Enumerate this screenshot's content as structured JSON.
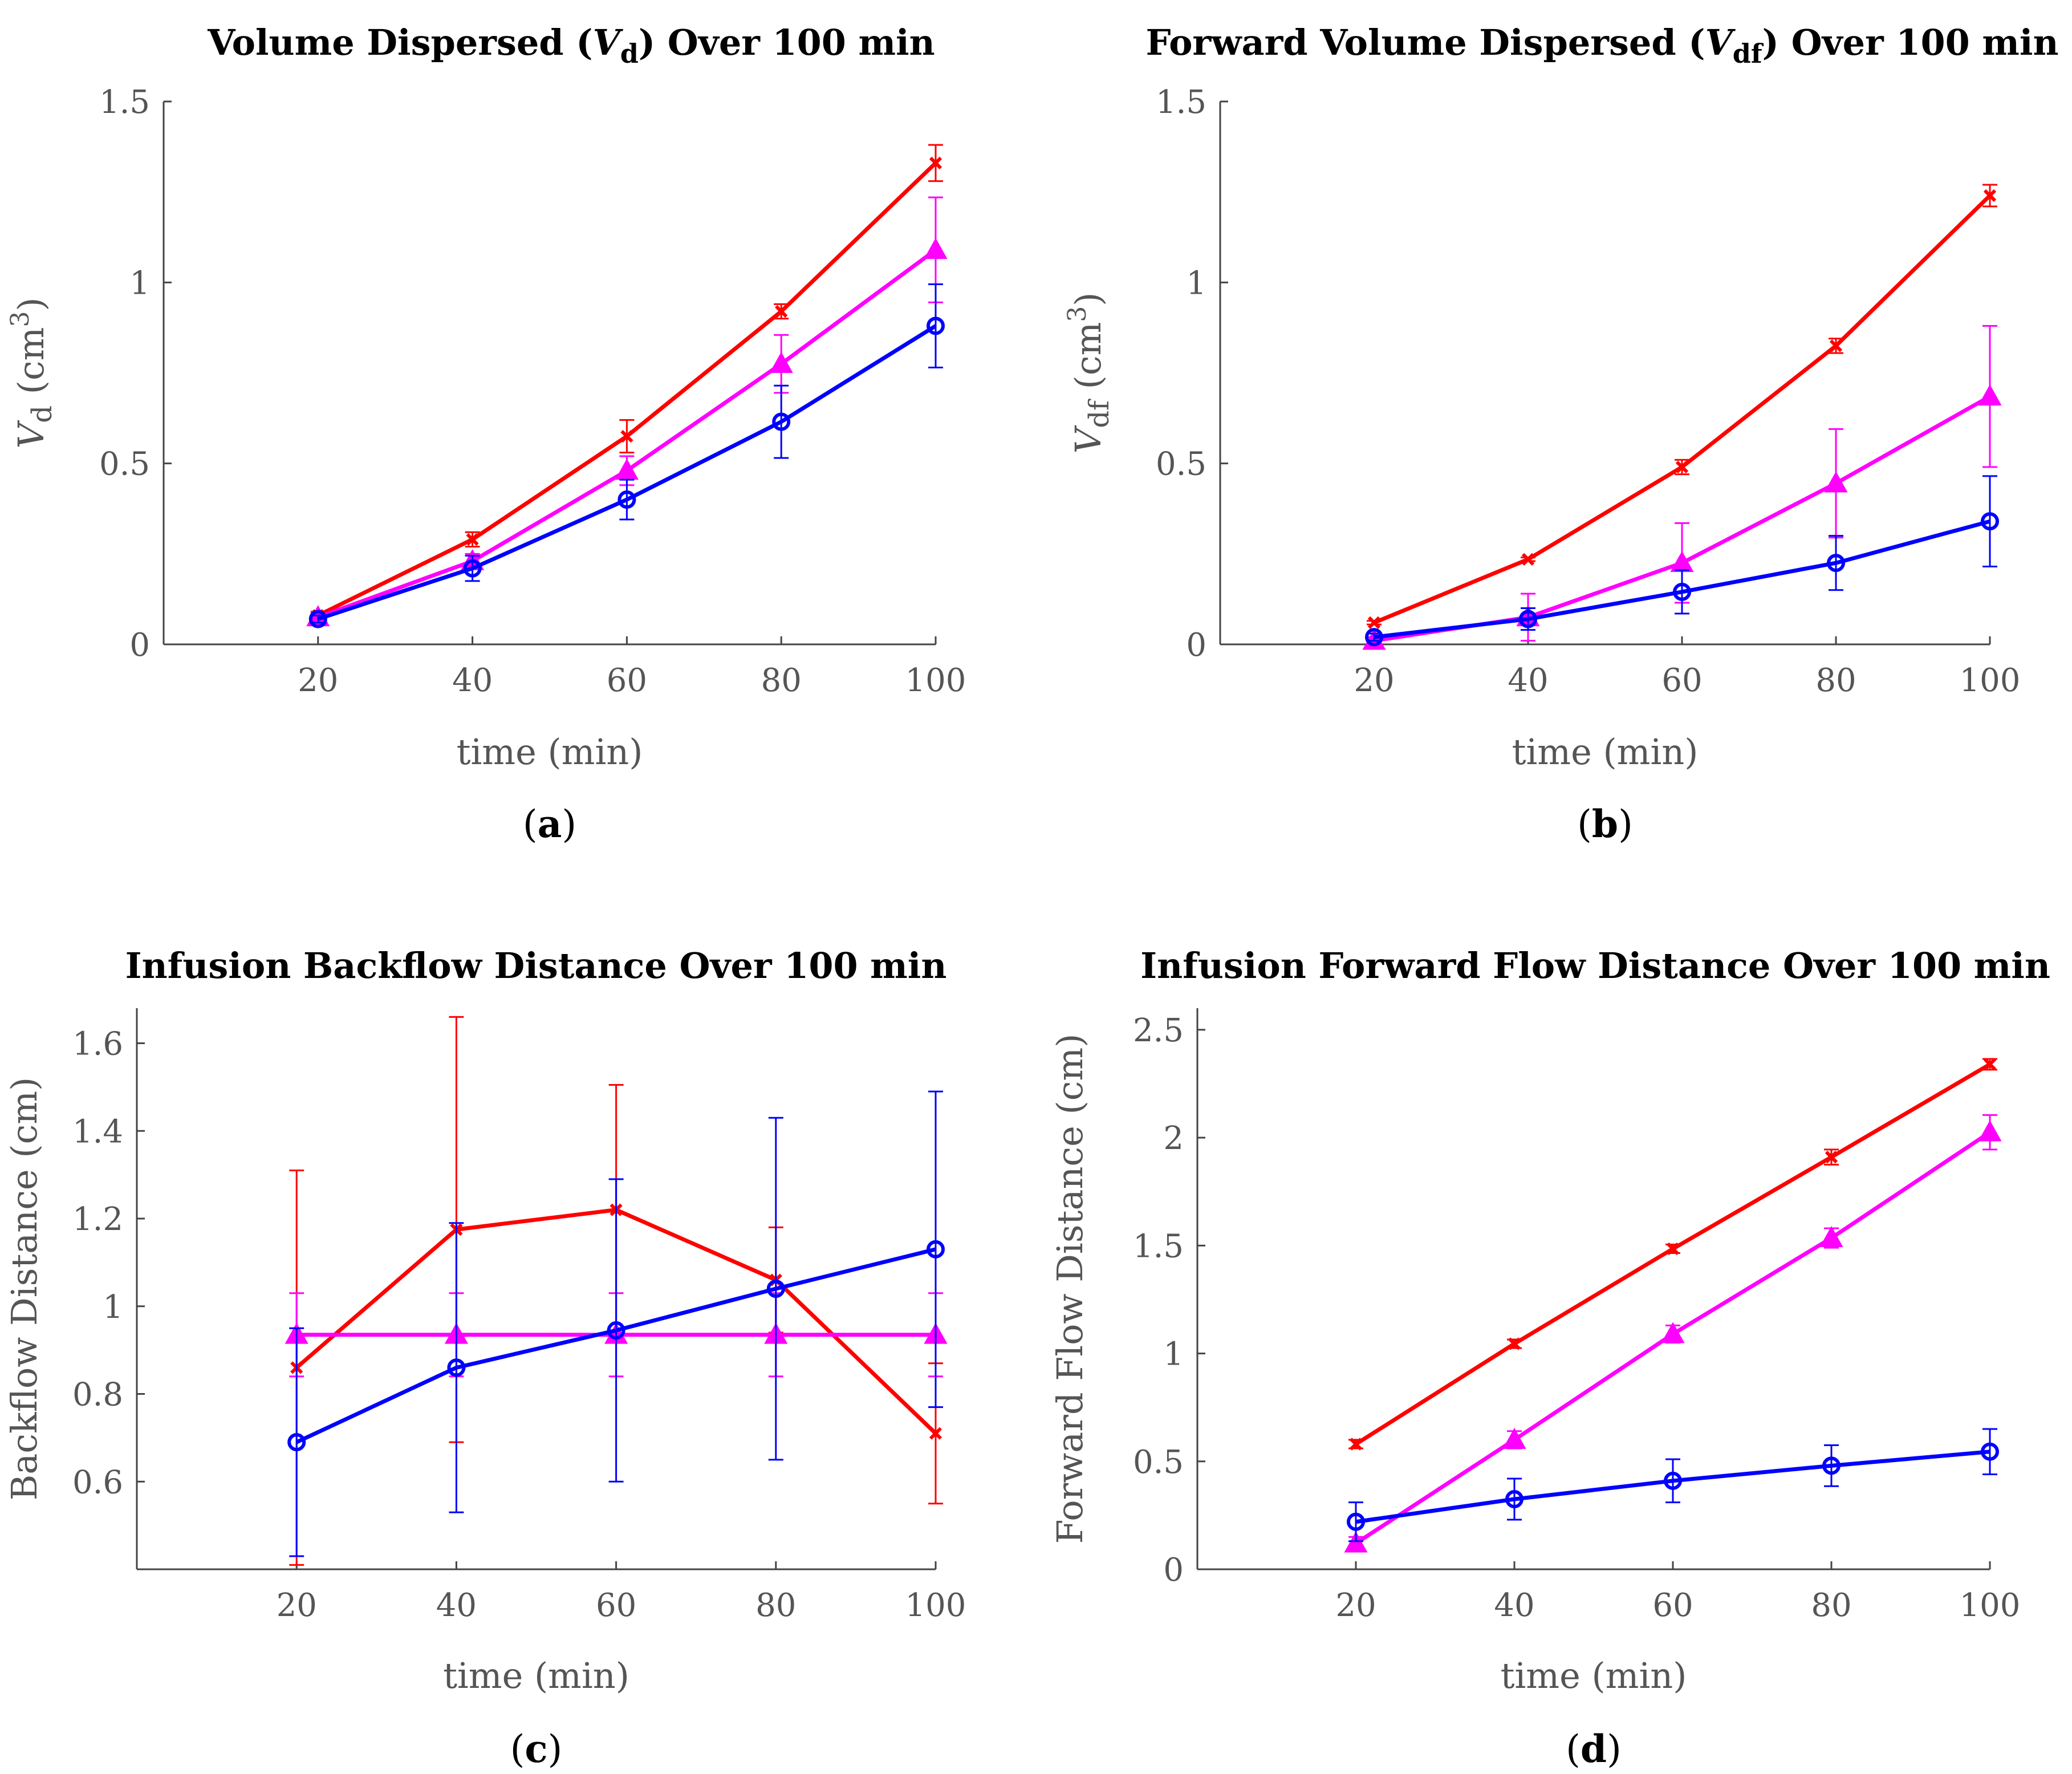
{
  "colors": {
    "red": "#ff0000",
    "magenta": "#ff00ff",
    "blue": "#0000ff",
    "axis": "#444444",
    "text": "#555555"
  },
  "chart_data": [
    {
      "id": "a",
      "type": "line",
      "title_parts": [
        "Volume Dispersed (",
        "V",
        "d",
        ") Over 100 min"
      ],
      "xlabel": "time (min)",
      "ylabel_parts": [
        "V",
        "d",
        " (cm",
        "3",
        ")"
      ],
      "panel_label": [
        "(",
        "a",
        ")"
      ],
      "x": [
        20,
        40,
        60,
        80,
        100
      ],
      "xlim": [
        0,
        100
      ],
      "ylim": [
        0,
        1.5
      ],
      "xticks": [
        20,
        40,
        60,
        80,
        100
      ],
      "yticks": [
        0,
        0.5,
        1,
        1.5
      ],
      "ytick_labels": [
        "0",
        "0.5",
        "1",
        "1.5"
      ],
      "series": [
        {
          "name": "red",
          "color": "red",
          "marker": "x",
          "values": [
            0.08,
            0.29,
            0.575,
            0.92,
            1.33
          ],
          "err": [
            0.01,
            0.02,
            0.045,
            0.02,
            0.05
          ]
        },
        {
          "name": "magenta",
          "color": "magenta",
          "marker": "triangle",
          "values": [
            0.075,
            0.23,
            0.48,
            0.775,
            1.09
          ],
          "err": [
            0.01,
            0.02,
            0.04,
            0.08,
            0.145
          ]
        },
        {
          "name": "blue",
          "color": "blue",
          "marker": "circle",
          "values": [
            0.07,
            0.21,
            0.4,
            0.615,
            0.88
          ],
          "err": [
            0.01,
            0.035,
            0.055,
            0.1,
            0.115
          ]
        }
      ]
    },
    {
      "id": "b",
      "type": "line",
      "title_parts": [
        "Forward Volume Dispersed (",
        "V",
        "df",
        ") Over 100 min"
      ],
      "xlabel": "time (min)",
      "ylabel_parts": [
        "V",
        "df",
        " (cm",
        "3",
        ")"
      ],
      "panel_label": [
        "(",
        "b",
        ")"
      ],
      "x": [
        20,
        40,
        60,
        80,
        100
      ],
      "xlim": [
        0,
        100
      ],
      "ylim": [
        0,
        1.5
      ],
      "xticks": [
        20,
        40,
        60,
        80,
        100
      ],
      "yticks": [
        0,
        0.5,
        1,
        1.5
      ],
      "ytick_labels": [
        "0",
        "0.5",
        "1",
        "1.5"
      ],
      "series": [
        {
          "name": "red",
          "color": "red",
          "marker": "x",
          "values": [
            0.06,
            0.235,
            0.49,
            0.825,
            1.24
          ],
          "err": [
            0.005,
            0.005,
            0.02,
            0.02,
            0.03
          ]
        },
        {
          "name": "magenta",
          "color": "magenta",
          "marker": "triangle",
          "values": [
            0.01,
            0.075,
            0.225,
            0.445,
            0.685
          ],
          "err": [
            0.01,
            0.065,
            0.11,
            0.15,
            0.195
          ]
        },
        {
          "name": "blue",
          "color": "blue",
          "marker": "circle",
          "values": [
            0.02,
            0.07,
            0.145,
            0.225,
            0.34
          ],
          "err": [
            0.01,
            0.03,
            0.06,
            0.075,
            0.125
          ]
        }
      ]
    },
    {
      "id": "c",
      "type": "line",
      "title_parts": [
        "Infusion Backflow Distance Over 100 min"
      ],
      "xlabel": "time (min)",
      "ylabel_parts": [
        "Backflow Distance (cm)"
      ],
      "panel_label": [
        "(",
        "c",
        ")"
      ],
      "x": [
        20,
        40,
        60,
        80,
        100
      ],
      "xlim": [
        0,
        100
      ],
      "ylim": [
        0.4,
        1.68
      ],
      "xticks": [
        20,
        40,
        60,
        80,
        100
      ],
      "yticks": [
        0.6,
        0.8,
        1,
        1.2,
        1.4,
        1.6
      ],
      "ytick_labels": [
        "0.6",
        "0.8",
        "1",
        "1.2",
        "1.4",
        "1.6"
      ],
      "series": [
        {
          "name": "red",
          "color": "red",
          "marker": "x",
          "values": [
            0.86,
            1.175,
            1.22,
            1.06,
            0.71
          ],
          "err": [
            0.45,
            0.485,
            0.285,
            0.12,
            0.16
          ]
        },
        {
          "name": "magenta",
          "color": "magenta",
          "marker": "triangle",
          "values": [
            0.935,
            0.935,
            0.935,
            0.935,
            0.935
          ],
          "err": [
            0.095,
            0.095,
            0.095,
            0.095,
            0.095
          ]
        },
        {
          "name": "blue",
          "color": "blue",
          "marker": "circle",
          "values": [
            0.69,
            0.86,
            0.945,
            1.04,
            1.13
          ],
          "err": [
            0.26,
            0.33,
            0.345,
            0.39,
            0.36
          ]
        }
      ]
    },
    {
      "id": "d",
      "type": "line",
      "title_parts": [
        "Infusion Forward Flow Distance Over 100 min"
      ],
      "xlabel": "time (min)",
      "ylabel_parts": [
        "Forward Flow Distance (cm)"
      ],
      "panel_label": [
        "(",
        "d",
        ")"
      ],
      "x": [
        20,
        40,
        60,
        80,
        100
      ],
      "xlim": [
        0,
        100
      ],
      "ylim": [
        0,
        2.6
      ],
      "xticks": [
        20,
        40,
        60,
        80,
        100
      ],
      "yticks": [
        0,
        0.5,
        1,
        1.5,
        2,
        2.5
      ],
      "ytick_labels": [
        "0",
        "0.5",
        "1",
        "1.5",
        "2",
        "2.5"
      ],
      "series": [
        {
          "name": "red",
          "color": "red",
          "marker": "x",
          "values": [
            0.58,
            1.045,
            1.485,
            1.91,
            2.34
          ],
          "err": [
            0.02,
            0.02,
            0.02,
            0.035,
            0.025
          ]
        },
        {
          "name": "magenta",
          "color": "magenta",
          "marker": "triangle",
          "values": [
            0.12,
            0.6,
            1.09,
            1.535,
            2.025
          ],
          "err": [
            0.03,
            0.04,
            0.04,
            0.045,
            0.08
          ]
        },
        {
          "name": "blue",
          "color": "blue",
          "marker": "circle",
          "values": [
            0.22,
            0.325,
            0.41,
            0.48,
            0.545
          ],
          "err": [
            0.09,
            0.095,
            0.1,
            0.095,
            0.105
          ]
        }
      ]
    }
  ]
}
